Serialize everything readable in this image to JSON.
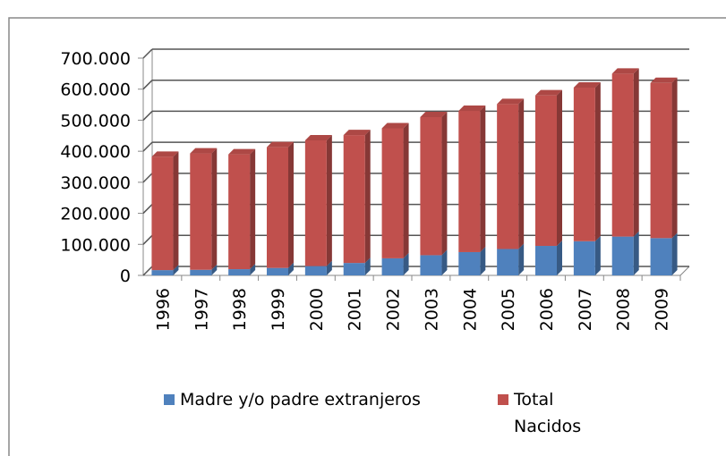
{
  "chart_data": {
    "type": "bar",
    "stacked": true,
    "categories": [
      "1996",
      "1997",
      "1998",
      "1999",
      "2000",
      "2001",
      "2002",
      "2003",
      "2004",
      "2005",
      "2006",
      "2007",
      "2008",
      "2009"
    ],
    "series": [
      {
        "name": "Madre y/o padre extranjeros",
        "color": "#4f81bd",
        "values": [
          17000,
          18000,
          20000,
          24000,
          30000,
          40000,
          55000,
          65000,
          75000,
          85000,
          95000,
          110000,
          125000,
          120000
        ]
      },
      {
        "name": "Total Nacidos",
        "color": "#c0504d",
        "values": [
          365000,
          375000,
          370000,
          389000,
          405000,
          412000,
          419000,
          445000,
          455000,
          467000,
          485000,
          495000,
          525000,
          500000
        ]
      }
    ],
    "ylim": [
      0,
      700000
    ],
    "yticks": [
      0,
      {
        "value": 100000,
        "label": "100.000"
      },
      {
        "value": 200000,
        "label": "200.000"
      },
      {
        "value": 300000,
        "label": "300.000"
      },
      {
        "value": 400000,
        "label": "400.000"
      },
      {
        "value": 500000,
        "label": "500.000"
      },
      {
        "value": 600000,
        "label": "600.000"
      },
      {
        "value": 700000,
        "label": "700.000"
      }
    ],
    "grid": true,
    "legend": "bottom"
  }
}
